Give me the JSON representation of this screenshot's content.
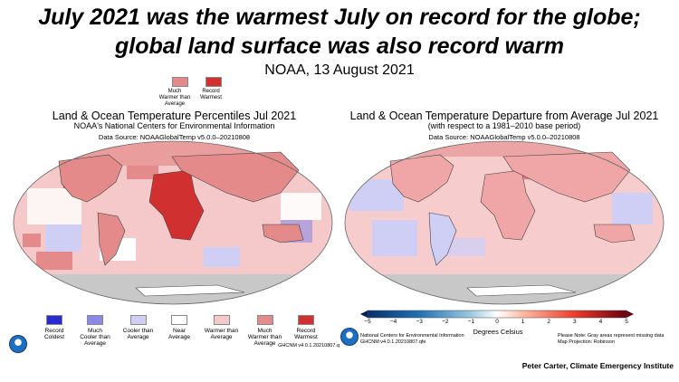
{
  "header": {
    "line1": "July 2021 was the warmest July on record for the globe;",
    "line2": "global land surface was also record warm",
    "source": "NOAA, 13 August 2021"
  },
  "top_legend": {
    "items": [
      {
        "label": "Much\nWarmer than\nAverage",
        "color": "#e58a8a"
      },
      {
        "label": "Record\nWarmest",
        "color": "#d03030"
      }
    ]
  },
  "left_map": {
    "title": "Land & Ocean Temperature Percentiles Jul 2021",
    "subtitle": "NOAA's National Centers for Environmental Information",
    "data_source": "Data Source: NOAAGlobalTemp v5.0.0–20210808",
    "credit": "GHCNM v4.0.1.20210807.q",
    "legend": [
      {
        "label": "Record\nColdest",
        "color": "#2a2ad0"
      },
      {
        "label": "Much\nCooler than\nAverage",
        "color": "#8a8ae6"
      },
      {
        "label": "Cooler than\nAverage",
        "color": "#cfcff5"
      },
      {
        "label": "Near\nAverage",
        "color": "#ffffff"
      },
      {
        "label": "Warmer than\nAverage",
        "color": "#f5c9c9"
      },
      {
        "label": "Much\nWarmer than\nAverage",
        "color": "#e58a8a"
      },
      {
        "label": "Record\nWarmest",
        "color": "#d03030"
      }
    ]
  },
  "right_map": {
    "title": "Land & Ocean Temperature Departure from Average Jul 2021",
    "subtitle": "(with respect to a 1981–2010 base period)",
    "data_source": "Data Source: NOAAGlobalTemp v5.0.0–20210808",
    "footer_left": "National Centers for Environmental Information\nGHCNM v4.0.1.20210807.qfe",
    "footer_right": "Please Note: Gray areas represent missing data\nMap Projection: Robinson",
    "colorbar_ticks": [
      "-5",
      "-4",
      "-3",
      "-2",
      "-1",
      "0",
      "1",
      "2",
      "3",
      "4",
      "5"
    ],
    "colorbar_label": "Degrees Celsius"
  },
  "colors": {
    "record_warm": "#d03030",
    "much_warmer": "#e58a8a",
    "warmer": "#f5c9c9",
    "near": "#ffffff",
    "cooler": "#cfcff5",
    "much_cooler": "#8a8ae6",
    "record_cold": "#2a2ad0",
    "missing": "#c8c8c8"
  },
  "credit": "Peter Carter, Climate Emergency Institute"
}
